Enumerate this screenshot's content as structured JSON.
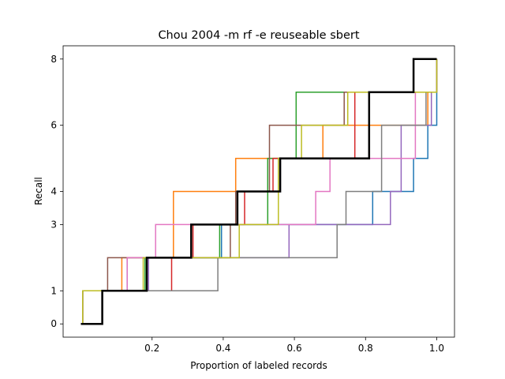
{
  "chart_data": {
    "type": "line",
    "title": "Chou 2004 -m rf -e reuseable sbert",
    "xlabel": "Proportion of labeled records",
    "ylabel": "Recall",
    "xlim": [
      -0.05,
      1.05
    ],
    "ylim": [
      -0.4,
      8.4
    ],
    "x_ticks": [
      0.2,
      0.4,
      0.6,
      0.8,
      1.0
    ],
    "x_tick_labels": [
      "0.2",
      "0.4",
      "0.6",
      "0.8",
      "1.0"
    ],
    "y_ticks": [
      0,
      1,
      3,
      4,
      6,
      8
    ],
    "y_tick_labels": [
      "0",
      "1",
      "3",
      "4",
      "6",
      "8"
    ],
    "grid": false,
    "legend": "none",
    "step_where": "post",
    "series": [
      {
        "color": "#1f77b4",
        "width": 1.5,
        "x": [
          0,
          0.005,
          0.13,
          0.395,
          0.82,
          0.935,
          0.975,
          1.0
        ],
        "y": [
          0,
          1,
          2,
          3,
          4,
          5,
          6,
          8
        ]
      },
      {
        "color": "#ff7f0e",
        "width": 1.5,
        "x": [
          0,
          0.005,
          0.115,
          0.26,
          0.435,
          0.68,
          0.975,
          1.0
        ],
        "y": [
          0,
          1,
          2,
          4,
          5,
          6,
          7,
          8
        ]
      },
      {
        "color": "#2ca02c",
        "width": 1.5,
        "x": [
          0,
          0.005,
          0.18,
          0.39,
          0.525,
          0.605,
          0.98,
          1.0
        ],
        "y": [
          0,
          1,
          2,
          3,
          5,
          7,
          7,
          8
        ]
      },
      {
        "color": "#d62728",
        "width": 1.5,
        "x": [
          0,
          0.005,
          0.255,
          0.315,
          0.46,
          0.54,
          0.77,
          1.0
        ],
        "y": [
          0,
          1,
          2,
          3,
          4,
          5,
          7,
          8
        ]
      },
      {
        "color": "#9467bd",
        "width": 1.5,
        "x": [
          0,
          0.005,
          0.19,
          0.585,
          0.87,
          0.9,
          0.985,
          1.0
        ],
        "y": [
          0,
          1,
          2,
          3,
          4,
          6,
          7,
          8
        ]
      },
      {
        "color": "#8c564b",
        "width": 1.5,
        "x": [
          0,
          0.005,
          0.075,
          0.42,
          0.435,
          0.53,
          0.74,
          1.0
        ],
        "y": [
          0,
          1,
          2,
          3,
          4,
          6,
          7,
          8
        ]
      },
      {
        "color": "#e377c2",
        "width": 1.5,
        "x": [
          0,
          0.005,
          0.13,
          0.21,
          0.66,
          0.7,
          0.94,
          1.0
        ],
        "y": [
          0,
          1,
          2,
          3,
          4,
          5,
          7,
          8
        ]
      },
      {
        "color": "#7f7f7f",
        "width": 1.5,
        "x": [
          0,
          0.005,
          0.385,
          0.72,
          0.745,
          0.845,
          0.97,
          1.0
        ],
        "y": [
          0,
          1,
          2,
          3,
          4,
          6,
          7,
          8
        ]
      },
      {
        "color": "#bcbd22",
        "width": 1.5,
        "x": [
          0,
          0.005,
          0.175,
          0.445,
          0.555,
          0.62,
          0.75,
          1.0
        ],
        "y": [
          0,
          1,
          2,
          3,
          5,
          6,
          7,
          8
        ]
      },
      {
        "color": "#000000",
        "width": 2.5,
        "x": [
          0,
          0.06,
          0.185,
          0.31,
          0.44,
          0.56,
          0.81,
          0.935,
          1.0
        ],
        "y": [
          0,
          1,
          2,
          3,
          4,
          5,
          7,
          8,
          8
        ]
      }
    ]
  }
}
